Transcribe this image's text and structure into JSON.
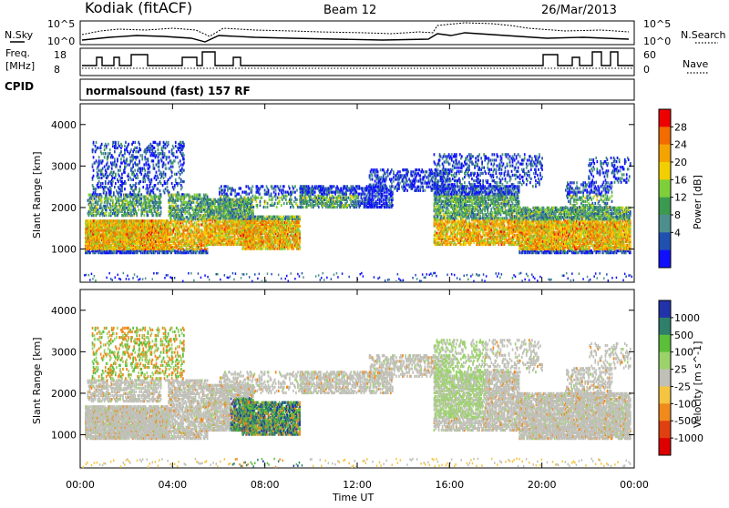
{
  "header": {
    "station": "Kodiak (fitACF)",
    "beam": "Beam 12",
    "date": "26/Mar/2013"
  },
  "noise_panel": {
    "left_label": "N.Sky",
    "right_label": "N.Search",
    "left_ticks": [
      "10^5",
      "10^0"
    ],
    "right_ticks": [
      "10^5",
      "10^0"
    ]
  },
  "freq_panel": {
    "left_label_1": "Freq.",
    "left_label_2": "[MHz]",
    "right_label": "Nave",
    "left_ticks": [
      "18",
      "8"
    ],
    "right_ticks": [
      "60",
      "0"
    ]
  },
  "cpid_panel": {
    "label": "CPID",
    "text": "normalsound (fast) 157 RF"
  },
  "time_axis": {
    "ticks": [
      "00:00",
      "04:00",
      "08:00",
      "12:00",
      "16:00",
      "20:00",
      "00:00"
    ],
    "title": "Time UT"
  },
  "chart_data": [
    {
      "type": "heatmap",
      "name": "power",
      "ylabel": "Slant Range [km]",
      "yticks": [
        "4000",
        "3000",
        "2000",
        "1000"
      ],
      "ylim": [
        200,
        4500
      ],
      "xlim_hours": [
        0,
        24
      ],
      "colorbar": {
        "label": "Power [dB]",
        "ticks": [
          "28",
          "24",
          "20",
          "16",
          "12",
          "8",
          "4"
        ],
        "colors": [
          "#ee0000",
          "#f26c00",
          "#f5a300",
          "#f2cf00",
          "#7fcf3a",
          "#3c9a50",
          "#4d8f8f",
          "#2050b0",
          "#1010ff"
        ]
      }
    },
    {
      "type": "heatmap",
      "name": "velocity",
      "ylabel": "Slant Range [km]",
      "yticks": [
        "4000",
        "3000",
        "2000",
        "1000"
      ],
      "ylim": [
        200,
        4500
      ],
      "xlim_hours": [
        0,
        24
      ],
      "colorbar": {
        "label": "Velocity [m s^-1]",
        "ticks": [
          "1000",
          "500",
          "100",
          "25",
          "-25",
          "-100",
          "-500",
          "-1000"
        ],
        "colors": [
          "#2233aa",
          "#2f7f6a",
          "#5cbf3a",
          "#9bd36a",
          "#c0c0b8",
          "#f5c542",
          "#f08a1c",
          "#e04010",
          "#dd0000"
        ]
      }
    }
  ]
}
